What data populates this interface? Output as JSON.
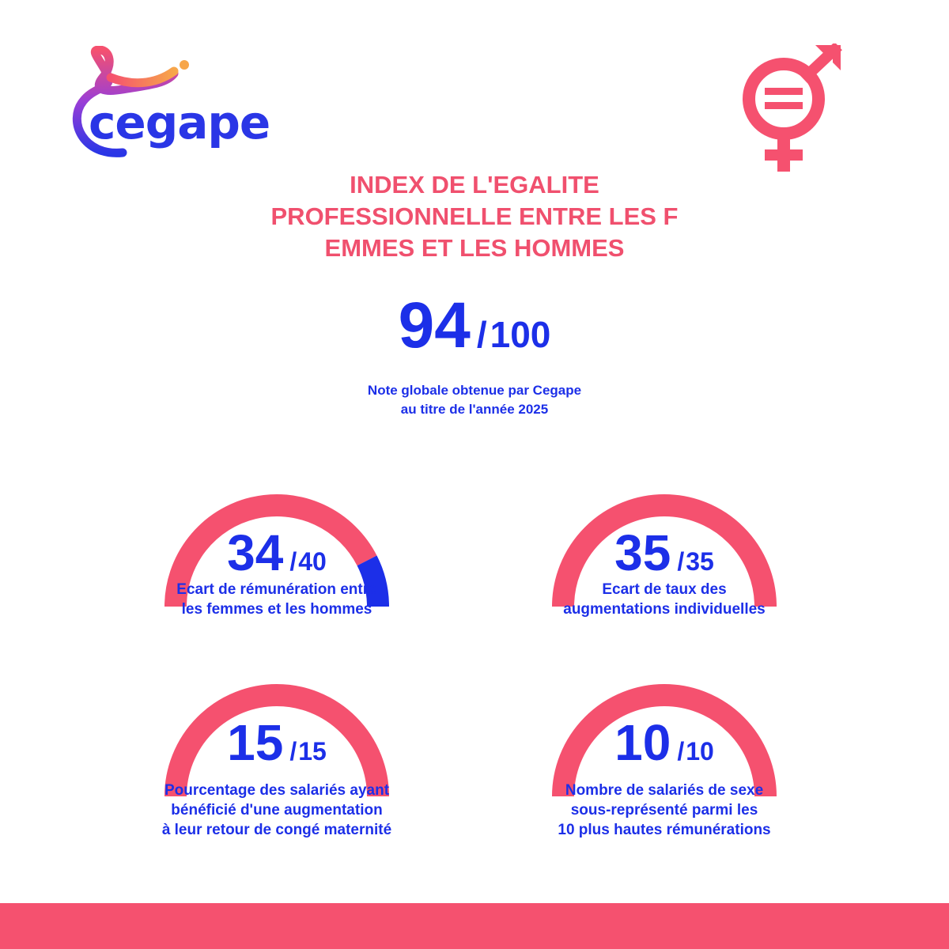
{
  "brand": {
    "name": "cegape",
    "colors": {
      "pink": "#f5516f",
      "blue": "#1c2fe8",
      "orange": "#f7a64a",
      "purple": "#8a3fd0"
    }
  },
  "icons": {
    "logo": "cegape-logo-icon",
    "equality": "gender-equality-icon"
  },
  "title_lines": [
    "INDEX DE L'EGALITE",
    "PROFESSIONNELLE ENTRE LES F",
    "EMMES ET LES HOMMES"
  ],
  "global_score": {
    "score": "94",
    "slash": "/",
    "max": "100",
    "caption_lines": [
      "Note globale obtenue par Cegape",
      "au titre de l'année 2025"
    ]
  },
  "indicators": [
    {
      "score": "34",
      "max": "40",
      "fraction": 0.85,
      "label_lines": [
        "Ecart de rémunération entre",
        "les femmes et les hommes"
      ]
    },
    {
      "score": "35",
      "max": "35",
      "fraction": 1.0,
      "label_lines": [
        "Ecart de taux des",
        "augmentations individuelles"
      ]
    },
    {
      "score": "15",
      "max": "15",
      "fraction": 1.0,
      "label_lines": [
        "Pourcentage des salariés ayant",
        "bénéficié d'une augmentation",
        "à leur retour de congé maternité"
      ]
    },
    {
      "score": "10",
      "max": "10",
      "fraction": 1.0,
      "label_lines": [
        "Nombre de salariés de sexe",
        "sous-représenté parmi les",
        "10 plus hautes rémunérations"
      ]
    }
  ]
}
